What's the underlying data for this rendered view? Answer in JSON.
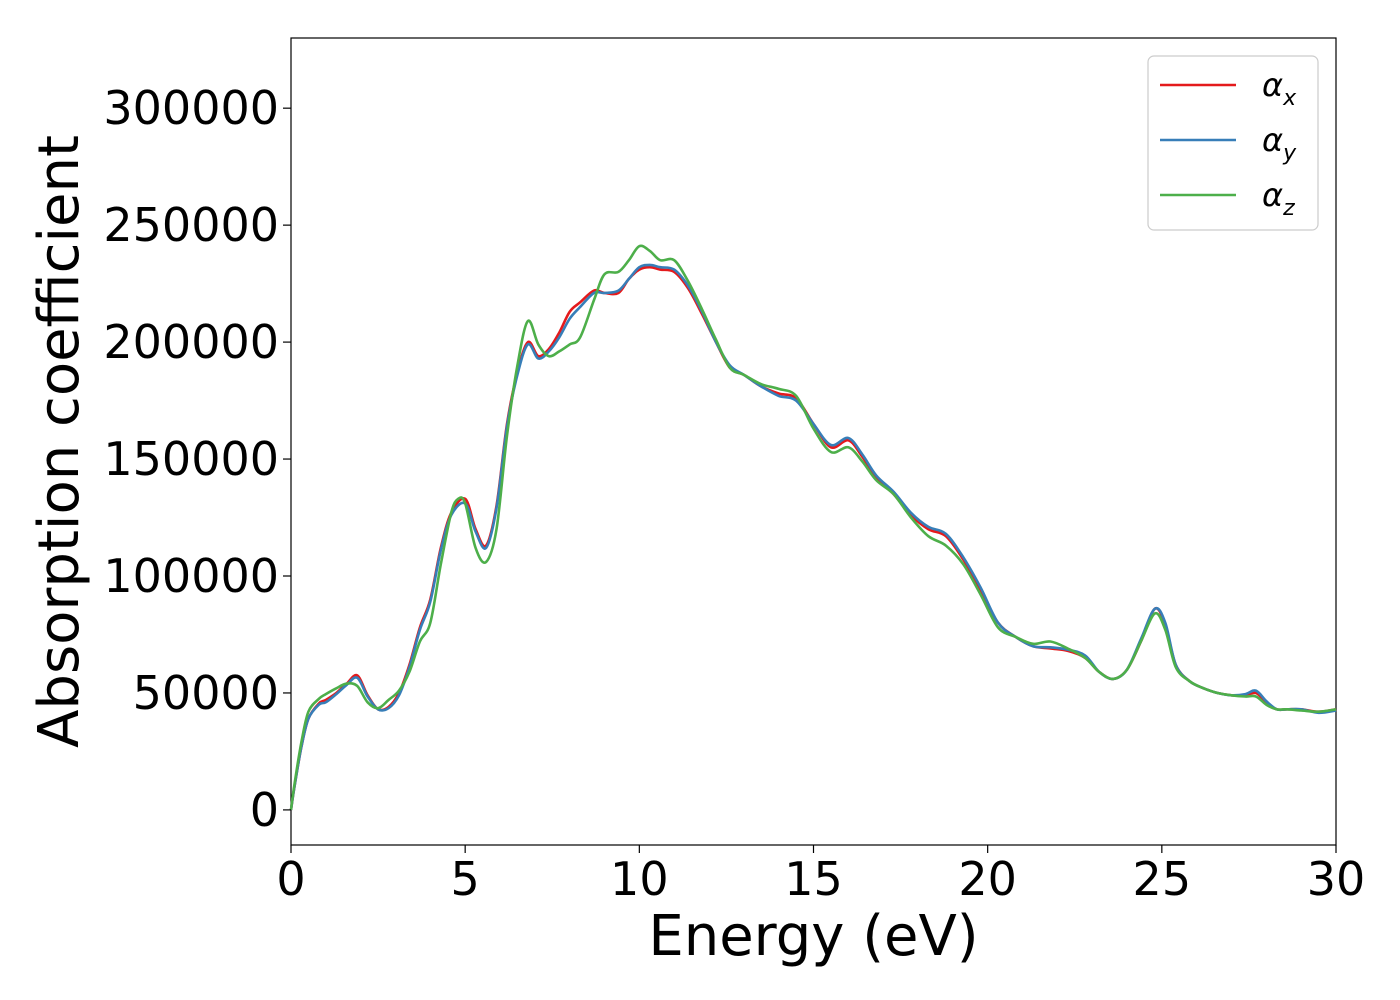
{
  "chart_data": {
    "type": "line",
    "title": "",
    "xlabel": "Energy (eV)",
    "ylabel": "Absorption coefficient",
    "xlim": [
      0,
      30
    ],
    "ylim": [
      -15000,
      330000
    ],
    "xticks": [
      0,
      5,
      10,
      15,
      20,
      25,
      30
    ],
    "yticks": [
      0,
      50000,
      100000,
      150000,
      200000,
      250000,
      300000
    ],
    "xtick_labels": [
      "0",
      "5",
      "10",
      "15",
      "20",
      "25",
      "30"
    ],
    "ytick_labels": [
      "0",
      "50000",
      "100000",
      "150000",
      "200000",
      "250000",
      "300000"
    ],
    "grid": false,
    "legend_position": "top-right",
    "series": [
      {
        "name": "αx",
        "name_base": "α",
        "name_sub": "x",
        "color": "#e41a1c",
        "x": [
          0,
          0.1,
          0.3,
          0.5,
          0.8,
          1.0,
          1.3,
          1.6,
          1.9,
          2.2,
          2.5,
          2.8,
          3.1,
          3.4,
          3.7,
          4.0,
          4.3,
          4.6,
          5.0,
          5.3,
          5.6,
          5.9,
          6.2,
          6.5,
          6.8,
          7.1,
          7.4,
          7.7,
          8.0,
          8.3,
          8.7,
          9.0,
          9.4,
          9.7,
          10.0,
          10.3,
          10.6,
          11.0,
          11.4,
          11.8,
          12.2,
          12.6,
          13.0,
          13.5,
          14.0,
          14.5,
          15.0,
          15.5,
          16.0,
          16.4,
          16.8,
          17.3,
          17.8,
          18.3,
          18.8,
          19.3,
          19.8,
          20.3,
          20.8,
          21.3,
          21.8,
          22.3,
          22.8,
          23.2,
          23.6,
          24.0,
          24.4,
          24.8,
          25.1,
          25.4,
          25.8,
          26.2,
          26.6,
          27.0,
          27.4,
          27.7,
          28.0,
          28.3,
          28.6,
          29.0,
          29.5,
          30.0
        ],
        "values": [
          0,
          10000,
          27000,
          39000,
          45500,
          47000,
          50000,
          54000,
          57500,
          49000,
          43000,
          44000,
          50000,
          62000,
          78000,
          90000,
          112000,
          127000,
          133000,
          120000,
          113000,
          130000,
          165000,
          187000,
          200000,
          194000,
          197000,
          204000,
          213000,
          217000,
          222000,
          221000,
          221000,
          227000,
          231000,
          232000,
          231000,
          230000,
          223000,
          212000,
          200000,
          189000,
          186000,
          181000,
          178000,
          176000,
          165000,
          155000,
          158000,
          151000,
          142000,
          135000,
          126000,
          120000,
          117000,
          107000,
          94000,
          80000,
          74000,
          70000,
          69000,
          68000,
          65000,
          59000,
          56000,
          60000,
          72000,
          86000,
          79000,
          62000,
          55000,
          52000,
          50000,
          49000,
          49000,
          50000,
          46000,
          43000,
          43000,
          43000,
          42000,
          43000
        ]
      },
      {
        "name": "αy",
        "name_base": "α",
        "name_sub": "y",
        "color": "#377eb8",
        "x": [
          0,
          0.1,
          0.3,
          0.5,
          0.8,
          1.0,
          1.3,
          1.6,
          1.9,
          2.2,
          2.5,
          2.8,
          3.1,
          3.4,
          3.7,
          4.0,
          4.3,
          4.6,
          5.0,
          5.3,
          5.6,
          5.9,
          6.2,
          6.5,
          6.8,
          7.1,
          7.4,
          7.7,
          8.0,
          8.3,
          8.7,
          9.0,
          9.4,
          9.7,
          10.0,
          10.3,
          10.6,
          11.0,
          11.4,
          11.8,
          12.2,
          12.6,
          13.0,
          13.5,
          14.0,
          14.5,
          15.0,
          15.5,
          16.0,
          16.4,
          16.8,
          17.3,
          17.8,
          18.3,
          18.8,
          19.3,
          19.8,
          20.3,
          20.8,
          21.3,
          21.8,
          22.3,
          22.8,
          23.2,
          23.6,
          24.0,
          24.4,
          24.8,
          25.1,
          25.4,
          25.8,
          26.2,
          26.6,
          27.0,
          27.4,
          27.7,
          28.0,
          28.3,
          28.6,
          29.0,
          29.5,
          30.0
        ],
        "values": [
          0,
          10000,
          27000,
          39000,
          45000,
          46000,
          49500,
          53500,
          56500,
          48500,
          43000,
          43500,
          49000,
          61000,
          77000,
          89000,
          111000,
          126000,
          131000,
          119000,
          112000,
          129000,
          164000,
          186000,
          199000,
          193000,
          196000,
          202000,
          210000,
          215000,
          221000,
          221000,
          222000,
          227000,
          232000,
          233000,
          232000,
          231000,
          224000,
          213000,
          200000,
          190000,
          186000,
          181000,
          177000,
          175000,
          165000,
          156000,
          159000,
          152000,
          143000,
          136000,
          127000,
          121000,
          118000,
          108000,
          95000,
          80000,
          74000,
          70000,
          69500,
          68500,
          66000,
          59000,
          56000,
          60000,
          73000,
          86000,
          80000,
          62000,
          55000,
          52000,
          50000,
          49000,
          49500,
          51000,
          46500,
          43000,
          43000,
          43000,
          41500,
          42500
        ]
      },
      {
        "name": "αz",
        "name_base": "α",
        "name_sub": "z",
        "color": "#4daf4a",
        "x": [
          0,
          0.1,
          0.3,
          0.5,
          0.8,
          1.0,
          1.3,
          1.6,
          1.9,
          2.2,
          2.5,
          2.8,
          3.1,
          3.4,
          3.7,
          4.0,
          4.3,
          4.6,
          4.8,
          5.0,
          5.3,
          5.6,
          5.9,
          6.2,
          6.5,
          6.8,
          7.1,
          7.4,
          7.7,
          8.0,
          8.3,
          8.7,
          9.0,
          9.4,
          9.7,
          10.0,
          10.3,
          10.6,
          11.0,
          11.4,
          11.8,
          12.2,
          12.6,
          13.0,
          13.5,
          14.0,
          14.5,
          15.0,
          15.5,
          16.0,
          16.4,
          16.8,
          17.3,
          17.8,
          18.3,
          18.8,
          19.3,
          19.8,
          20.3,
          20.8,
          21.3,
          21.8,
          22.3,
          22.8,
          23.2,
          23.6,
          24.0,
          24.4,
          24.8,
          25.1,
          25.4,
          25.8,
          26.2,
          26.6,
          27.0,
          27.4,
          27.7,
          28.0,
          28.3,
          28.6,
          29.0,
          29.5,
          30.0
        ],
        "values": [
          0,
          11000,
          29000,
          42000,
          47500,
          49500,
          52000,
          54000,
          53000,
          46000,
          43500,
          47000,
          51000,
          59000,
          72000,
          80000,
          105000,
          127000,
          133000,
          131000,
          112000,
          106000,
          120000,
          160000,
          190000,
          209000,
          199000,
          194000,
          196000,
          199000,
          202000,
          218000,
          229000,
          230000,
          235000,
          241000,
          239000,
          235000,
          235000,
          226000,
          214000,
          201000,
          189000,
          186000,
          182000,
          180000,
          177000,
          163000,
          153000,
          155000,
          149000,
          141000,
          135000,
          125000,
          117000,
          113000,
          105000,
          92000,
          78000,
          74000,
          71000,
          72000,
          69000,
          65000,
          59000,
          56000,
          60000,
          72000,
          84000,
          77000,
          61000,
          55000,
          52000,
          50000,
          49000,
          48500,
          48500,
          45000,
          43000,
          43000,
          42500,
          42000,
          43000
        ]
      }
    ]
  }
}
